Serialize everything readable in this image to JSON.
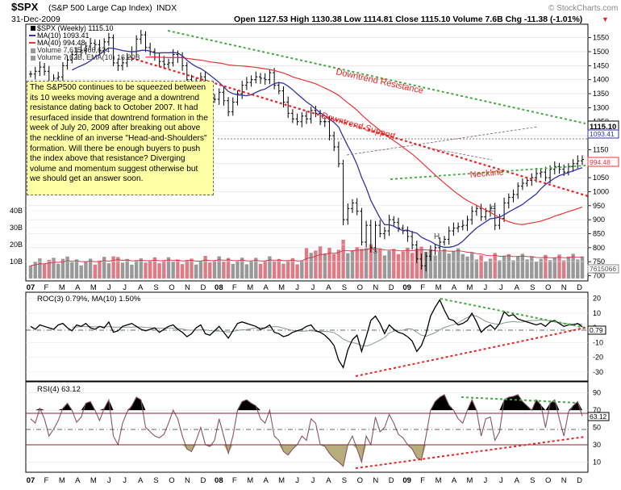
{
  "header": {
    "symbol": "$SPX",
    "name": "(S&P 500 Large Cap Index)",
    "exchange": "INDX",
    "date": "31-Dec-2009",
    "ohlc": "Open 1127.53  High 1130.38  Low 1114.81  Close 1115.10  Volume 7.6B  Chg -11.38 (-1.01%)",
    "watermark": "© StockCharts.com"
  },
  "legend": {
    "price": "$SPX (Weekly) 1115.10",
    "ma10": "MA(10) 1093.41",
    "ma40": "MA(40) 994.48",
    "volume": "Volume 7,615,066,624",
    "vol_ema": "Volume 7.62B, EMA(10) 16.20B"
  },
  "annotations": {
    "note": "The S&P500 continues to be squeezed between its 10 weeks moving average and a downtrend resistance dating back to October 2007. It had resurfaced inside that downtrend formation in the week of July 20, 2009 after breaking out above the neckline of an inverse \"Head-and-Shoulders\" formation. Will there be enough buyers to push the index above that resistance? Diverging volume and momentum suggest otherwise but we should get an answer soon.",
    "downtrend_resistance": "Downtrend Resistance",
    "downtrend_support": "Downtrend Support",
    "neckline": "Neckline",
    "s1": "S",
    "h": "H",
    "s2": "S",
    "price_tag_close": "1115.10",
    "price_tag_ma10": "1093.41",
    "price_tag_ma40": "994.48",
    "vol_tag": "7615066"
  },
  "colors": {
    "price_bar": "#000000",
    "ma10": "#3333aa",
    "ma40": "#ee3333",
    "vol_up": "#999999",
    "vol_down": "#e07b86",
    "resistance": "#44aa44",
    "support": "#ee2222",
    "note_bg": "#ffffa6",
    "rsi_line": "#8a5566"
  },
  "x_labels": [
    "07",
    "F",
    "M",
    "A",
    "M",
    "J",
    "J",
    "A",
    "S",
    "O",
    "N",
    "D",
    "08",
    "F",
    "M",
    "A",
    "M",
    "J",
    "J",
    "A",
    "S",
    "O",
    "N",
    "D",
    "09",
    "F",
    "M",
    "A",
    "M",
    "J",
    "J",
    "A",
    "S",
    "O",
    "N",
    "D"
  ],
  "chart_data": [
    {
      "type": "ohlc",
      "title": "$SPX (S&P 500 Large Cap Index) INDX",
      "y_ticks": [
        700,
        750,
        800,
        850,
        900,
        950,
        1000,
        1050,
        1100,
        1150,
        1200,
        1250,
        1300,
        1350,
        1400,
        1450,
        1500,
        1550
      ],
      "ylim": [
        690,
        1575
      ],
      "volume_ticks": [
        "10B",
        "20B",
        "30B",
        "40B"
      ],
      "series": [
        {
          "name": "$SPX (Weekly)",
          "close": [
            1420,
            1430,
            1445,
            1430,
            1395,
            1405,
            1410,
            1450,
            1470,
            1490,
            1500,
            1505,
            1520,
            1530,
            1525,
            1505,
            1535,
            1550,
            1460,
            1450,
            1460,
            1480,
            1500,
            1545,
            1560,
            1515,
            1500,
            1480,
            1465,
            1455,
            1460,
            1490,
            1480,
            1450,
            1400,
            1390,
            1395,
            1410,
            1360,
            1330,
            1330,
            1355,
            1325,
            1285,
            1320,
            1350,
            1380,
            1390,
            1400,
            1410,
            1405,
            1400,
            1425,
            1380,
            1360,
            1320,
            1280,
            1260,
            1250,
            1270,
            1260,
            1290,
            1280,
            1250,
            1250,
            1200,
            1160,
            1100,
            900,
            940,
            960,
            930,
            820,
            880,
            800,
            880,
            850,
            860,
            900,
            890,
            870,
            860,
            840,
            810,
            760,
            735,
            770,
            790,
            800,
            820,
            830,
            860,
            870,
            875,
            880,
            900,
            930,
            940,
            910,
            930,
            940,
            880,
            905,
            960,
            980,
            990,
            1020,
            1030,
            1040,
            1050,
            1065,
            1070,
            1050,
            1080,
            1090,
            1080,
            1070,
            1090,
            1100,
            1110,
            1115
          ]
        },
        {
          "name": "MA(10)",
          "value": 1093.41
        },
        {
          "name": "MA(40)",
          "value": 994.48
        },
        {
          "name": "Volume",
          "value": 7615066624
        }
      ]
    },
    {
      "type": "line",
      "title": "ROC(3) 0.79%, MA(10) 1.50%",
      "y_ticks": [
        -30,
        -20,
        -10,
        0,
        10,
        20
      ],
      "ylim": [
        -35,
        22
      ],
      "series": [
        {
          "name": "ROC(3)",
          "values": [
            1,
            -1,
            2,
            1,
            0,
            -1,
            2,
            3,
            0,
            -2,
            2,
            1,
            3,
            0,
            -1,
            1,
            0,
            4,
            -3,
            -2,
            1,
            2,
            3,
            1,
            -1,
            -2,
            -1,
            0,
            -3,
            -1,
            1,
            2,
            -1,
            -3,
            -6,
            -4,
            0,
            2,
            -4,
            -5,
            -2,
            1,
            -3,
            -7,
            -2,
            3,
            4,
            3,
            2,
            1,
            -1,
            0,
            2,
            -3,
            -4,
            -6,
            -5,
            -3,
            -2,
            -1,
            1,
            2,
            -2,
            -3,
            -5,
            -8,
            -12,
            -22,
            -27,
            -15,
            -8,
            -5,
            -16,
            -6,
            5,
            8,
            3,
            -4,
            2,
            -1,
            -3,
            -4,
            -6,
            -9,
            -16,
            -12,
            -4,
            8,
            14,
            19,
            12,
            6,
            5,
            2,
            3,
            5,
            10,
            4,
            -3,
            0,
            2,
            -1,
            3,
            11,
            8,
            9,
            6,
            5,
            4,
            3,
            2,
            3,
            1,
            4,
            5,
            3,
            1,
            2,
            2,
            3,
            0.79
          ]
        },
        {
          "name": "MA(10)",
          "value": 1.5
        }
      ]
    },
    {
      "type": "line",
      "title": "RSI(4) 63.12",
      "y_ticks": [
        10,
        30,
        50,
        70,
        90
      ],
      "ylim": [
        0,
        100
      ],
      "series": [
        {
          "name": "RSI(4)",
          "values": [
            60,
            55,
            72,
            60,
            40,
            48,
            58,
            72,
            78,
            70,
            56,
            62,
            78,
            80,
            70,
            58,
            72,
            82,
            40,
            30,
            55,
            68,
            75,
            85,
            82,
            50,
            45,
            40,
            38,
            42,
            55,
            70,
            60,
            40,
            25,
            22,
            35,
            50,
            30,
            28,
            35,
            60,
            40,
            20,
            40,
            70,
            80,
            82,
            78,
            75,
            60,
            55,
            70,
            40,
            35,
            22,
            18,
            25,
            30,
            40,
            35,
            60,
            55,
            30,
            28,
            20,
            14,
            10,
            5,
            30,
            40,
            25,
            10,
            40,
            30,
            62,
            45,
            50,
            65,
            55,
            42,
            38,
            30,
            25,
            15,
            12,
            40,
            70,
            80,
            85,
            88,
            76,
            70,
            60,
            55,
            70,
            82,
            70,
            40,
            60,
            62,
            35,
            45,
            82,
            85,
            86,
            88,
            80,
            75,
            70,
            82,
            76,
            50,
            78,
            82,
            60,
            40,
            68,
            75,
            80,
            63.12
          ]
        }
      ]
    }
  ]
}
